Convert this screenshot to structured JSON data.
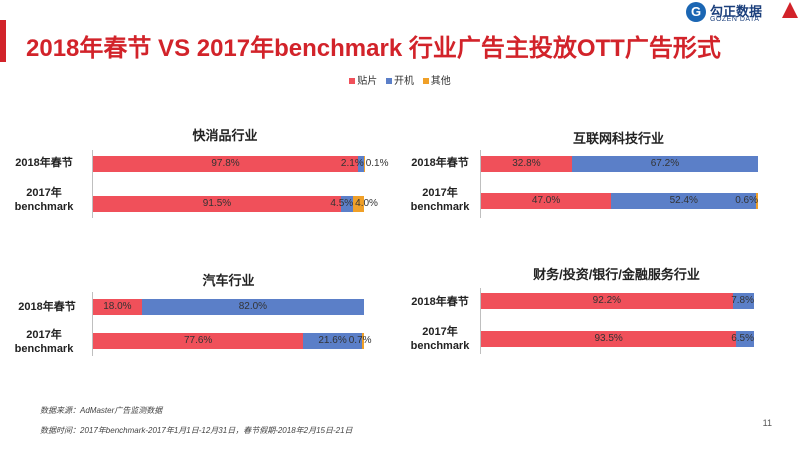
{
  "slide": {
    "title": "2018年春节  VS  2017年benchmark   行业广告主投放OTT广告形式",
    "page_number": "11"
  },
  "logo": {
    "mark": "G",
    "cn": "勾正数据",
    "en": "GOZEN DATA"
  },
  "colors": {
    "accent": "#d2232a",
    "paste": "#f0505a",
    "boot": "#5b7fc8",
    "other": "#f0a028"
  },
  "chart_data": {
    "type": "bar",
    "stacked": true,
    "orientation": "horizontal",
    "percent_scale": true,
    "legend": [
      {
        "name": "贴片",
        "color": "#f0505a"
      },
      {
        "name": "开机",
        "color": "#5b7fc8"
      },
      {
        "name": "其他",
        "color": "#f0a028"
      }
    ],
    "charts": [
      {
        "title": "快消品行业",
        "categories": [
          "2018年春节",
          "2017年benchmark"
        ],
        "series": [
          {
            "name": "贴片",
            "values": [
              97.8,
              91.5
            ],
            "labels": [
              "97.8%",
              "91.5%"
            ]
          },
          {
            "name": "开机",
            "values": [
              2.1,
              4.5
            ],
            "labels": [
              "2.1%",
              "4.5%"
            ]
          },
          {
            "name": "其他",
            "values": [
              0.1,
              4.0
            ],
            "labels": [
              "0.1%",
              "4.0%"
            ]
          }
        ]
      },
      {
        "title": "互联网科技行业",
        "categories": [
          "2018年春节",
          "2017年benchmark"
        ],
        "series": [
          {
            "name": "贴片",
            "values": [
              32.8,
              47.0
            ],
            "labels": [
              "32.8%",
              "47.0%"
            ]
          },
          {
            "name": "开机",
            "values": [
              67.2,
              52.4
            ],
            "labels": [
              "67.2%",
              "52.4%"
            ]
          },
          {
            "name": "其他",
            "values": [
              0,
              0.6
            ],
            "labels": [
              "",
              "0.6%"
            ]
          }
        ]
      },
      {
        "title": "汽车行业",
        "categories": [
          "2018年春节",
          "2017年benchmark"
        ],
        "series": [
          {
            "name": "贴片",
            "values": [
              18.0,
              77.6
            ],
            "labels": [
              "18.0%",
              "77.6%"
            ]
          },
          {
            "name": "开机",
            "values": [
              82.0,
              21.6
            ],
            "labels": [
              "82.0%",
              "21.6%"
            ]
          },
          {
            "name": "其他",
            "values": [
              0,
              0.7
            ],
            "labels": [
              "",
              "0.7%"
            ]
          }
        ]
      },
      {
        "title": "财务/投资/银行/金融服务行业",
        "categories": [
          "2018年春节",
          "2017年benchmark"
        ],
        "series": [
          {
            "name": "贴片",
            "values": [
              92.2,
              93.5
            ],
            "labels": [
              "92.2%",
              "93.5%"
            ]
          },
          {
            "name": "开机",
            "values": [
              7.8,
              6.5
            ],
            "labels": [
              "7.8%",
              "6.5%"
            ]
          },
          {
            "name": "其他",
            "values": [
              0,
              0
            ],
            "labels": [
              "",
              ""
            ]
          }
        ]
      }
    ]
  },
  "footnotes": {
    "source": "数据来源：AdMaster广告监测数据",
    "period": "数据时间：2017年benchmark-2017年1月1日-12月31日，春节假期-2018年2月15日-21日"
  }
}
